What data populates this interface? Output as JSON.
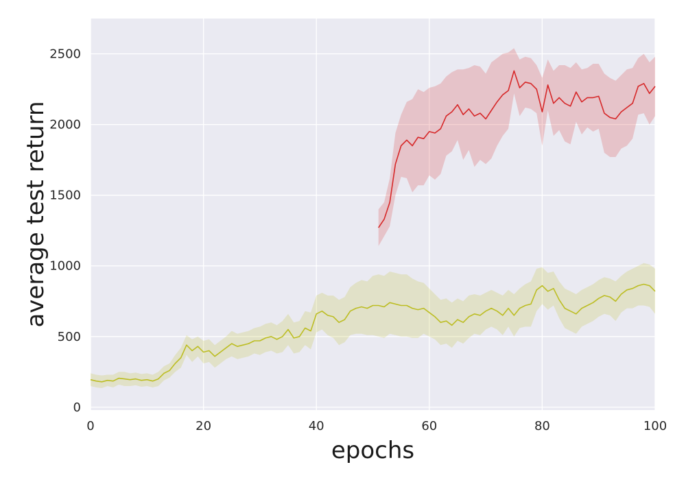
{
  "chart_data": {
    "type": "line",
    "title": "",
    "xlabel": "epochs",
    "ylabel": "average test return",
    "xlim": [
      0,
      100
    ],
    "ylim": [
      -20,
      2750
    ],
    "xticks": [
      0,
      20,
      40,
      60,
      80,
      100
    ],
    "yticks": [
      0,
      500,
      1000,
      1500,
      2000,
      2500
    ],
    "grid": true,
    "legend": "none",
    "background_color": "#eaeaf2",
    "series": [
      {
        "color": "#d62728",
        "x": [
          51,
          52,
          53,
          54,
          55,
          56,
          57,
          58,
          59,
          60,
          61,
          62,
          63,
          64,
          65,
          66,
          67,
          68,
          69,
          70,
          71,
          72,
          73,
          74,
          75,
          76,
          77,
          78,
          79,
          80,
          81,
          82,
          83,
          84,
          85,
          86,
          87,
          88,
          89,
          90,
          91,
          92,
          93,
          94,
          95,
          96,
          97,
          98,
          99,
          100
        ],
        "y": [
          1270,
          1330,
          1450,
          1720,
          1850,
          1890,
          1850,
          1910,
          1900,
          1950,
          1940,
          1970,
          2060,
          2090,
          2140,
          2070,
          2110,
          2060,
          2080,
          2040,
          2100,
          2160,
          2210,
          2240,
          2380,
          2260,
          2300,
          2290,
          2250,
          2090,
          2280,
          2150,
          2190,
          2150,
          2130,
          2230,
          2160,
          2190,
          2190,
          2200,
          2080,
          2050,
          2040,
          2090,
          2120,
          2150,
          2270,
          2290,
          2220,
          2270
        ],
        "upper": [
          1400,
          1450,
          1620,
          1940,
          2070,
          2160,
          2180,
          2250,
          2230,
          2260,
          2270,
          2290,
          2340,
          2370,
          2390,
          2390,
          2400,
          2420,
          2410,
          2360,
          2440,
          2470,
          2500,
          2510,
          2540,
          2460,
          2480,
          2470,
          2420,
          2330,
          2460,
          2380,
          2420,
          2420,
          2400,
          2440,
          2390,
          2400,
          2430,
          2430,
          2360,
          2330,
          2310,
          2350,
          2390,
          2400,
          2470,
          2500,
          2440,
          2480
        ],
        "lower": [
          1140,
          1210,
          1280,
          1500,
          1630,
          1620,
          1520,
          1570,
          1570,
          1640,
          1610,
          1650,
          1780,
          1810,
          1890,
          1750,
          1820,
          1700,
          1750,
          1720,
          1760,
          1850,
          1920,
          1970,
          2220,
          2060,
          2120,
          2110,
          2080,
          1850,
          2100,
          1920,
          1960,
          1880,
          1860,
          2020,
          1930,
          1980,
          1950,
          1970,
          1800,
          1770,
          1770,
          1830,
          1850,
          1900,
          2070,
          2080,
          2000,
          2060
        ]
      },
      {
        "color": "#bcbd22",
        "x": [
          0,
          1,
          2,
          3,
          4,
          5,
          6,
          7,
          8,
          9,
          10,
          11,
          12,
          13,
          14,
          15,
          16,
          17,
          18,
          19,
          20,
          21,
          22,
          23,
          24,
          25,
          26,
          27,
          28,
          29,
          30,
          31,
          32,
          33,
          34,
          35,
          36,
          37,
          38,
          39,
          40,
          41,
          42,
          43,
          44,
          45,
          46,
          47,
          48,
          49,
          50,
          51,
          52,
          53,
          54,
          55,
          56,
          57,
          58,
          59,
          60,
          61,
          62,
          63,
          64,
          65,
          66,
          67,
          68,
          69,
          70,
          71,
          72,
          73,
          74,
          75,
          76,
          77,
          78,
          79,
          80,
          81,
          82,
          83,
          84,
          85,
          86,
          87,
          88,
          89,
          90,
          91,
          92,
          93,
          94,
          95,
          96,
          97,
          98,
          99,
          100
        ],
        "y": [
          195,
          185,
          180,
          190,
          185,
          205,
          200,
          195,
          200,
          190,
          195,
          185,
          200,
          240,
          260,
          310,
          350,
          440,
          400,
          430,
          390,
          400,
          360,
          390,
          420,
          450,
          430,
          440,
          450,
          470,
          470,
          490,
          500,
          480,
          500,
          550,
          490,
          500,
          560,
          540,
          660,
          680,
          650,
          640,
          600,
          620,
          680,
          700,
          710,
          700,
          720,
          720,
          710,
          740,
          730,
          720,
          720,
          700,
          690,
          700,
          670,
          640,
          600,
          610,
          580,
          620,
          600,
          640,
          660,
          650,
          680,
          700,
          680,
          650,
          700,
          650,
          700,
          720,
          730,
          830,
          860,
          820,
          840,
          760,
          700,
          680,
          660,
          700,
          720,
          740,
          770,
          790,
          780,
          750,
          800,
          830,
          840,
          860,
          870,
          860,
          820
        ],
        "upper": [
          240,
          230,
          225,
          230,
          230,
          250,
          250,
          240,
          245,
          235,
          240,
          230,
          250,
          290,
          310,
          370,
          420,
          510,
          480,
          500,
          470,
          480,
          440,
          470,
          500,
          540,
          520,
          530,
          540,
          560,
          570,
          590,
          600,
          580,
          610,
          660,
          600,
          610,
          680,
          670,
          790,
          810,
          790,
          790,
          760,
          780,
          850,
          880,
          900,
          890,
          930,
          940,
          930,
          960,
          950,
          940,
          940,
          910,
          890,
          880,
          840,
          800,
          760,
          770,
          740,
          770,
          750,
          790,
          800,
          790,
          810,
          830,
          810,
          790,
          830,
          800,
          840,
          870,
          890,
          980,
          990,
          950,
          960,
          890,
          840,
          820,
          800,
          830,
          850,
          870,
          900,
          920,
          910,
          890,
          930,
          960,
          980,
          1000,
          1020,
          1010,
          980
        ],
        "lower": [
          150,
          140,
          135,
          150,
          140,
          160,
          150,
          150,
          155,
          145,
          150,
          140,
          150,
          190,
          210,
          250,
          280,
          370,
          320,
          360,
          310,
          320,
          280,
          310,
          340,
          360,
          340,
          350,
          360,
          380,
          370,
          390,
          400,
          380,
          390,
          440,
          380,
          390,
          440,
          410,
          530,
          550,
          510,
          490,
          440,
          460,
          510,
          520,
          520,
          510,
          510,
          500,
          490,
          520,
          510,
          500,
          500,
          490,
          490,
          520,
          500,
          480,
          440,
          450,
          420,
          470,
          450,
          490,
          520,
          510,
          550,
          570,
          550,
          510,
          570,
          500,
          560,
          570,
          570,
          680,
          730,
          690,
          720,
          630,
          560,
          540,
          520,
          570,
          590,
          610,
          640,
          660,
          650,
          610,
          670,
          700,
          700,
          720,
          720,
          710,
          660
        ]
      }
    ]
  }
}
